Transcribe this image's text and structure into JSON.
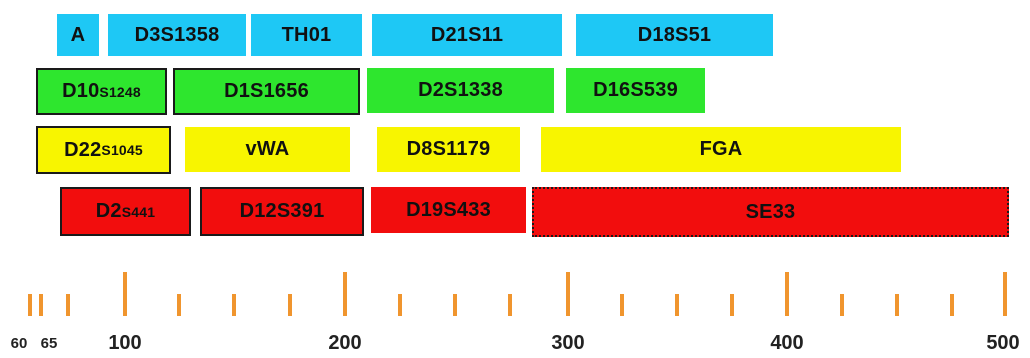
{
  "colors": {
    "row1": "#1ec8f5",
    "row2": "#2ee62e",
    "row3": "#f8f500",
    "row4": "#f20d0d",
    "tick": "#f0952e"
  },
  "markers": {
    "row1": [
      {
        "name": "A",
        "main": "A",
        "sub": ""
      },
      {
        "name": "D3S1358",
        "main": "D3S1358",
        "sub": ""
      },
      {
        "name": "TH01",
        "main": "TH01",
        "sub": ""
      },
      {
        "name": "D21S11",
        "main": "D21S11",
        "sub": ""
      },
      {
        "name": "D18S51",
        "main": "D18S51",
        "sub": ""
      }
    ],
    "row2": [
      {
        "name": "D10S1248",
        "main": "D10",
        "sub": "S1248"
      },
      {
        "name": "D1S1656",
        "main": "D1S1656",
        "sub": ""
      },
      {
        "name": "D2S1338",
        "main": "D2S1338",
        "sub": ""
      },
      {
        "name": "D16S539",
        "main": "D16S539",
        "sub": ""
      }
    ],
    "row3": [
      {
        "name": "D22S1045",
        "main": "D22",
        "sub": "S1045"
      },
      {
        "name": "vWA",
        "main": "vWA",
        "sub": ""
      },
      {
        "name": "D8S1179",
        "main": "D8S1179",
        "sub": ""
      },
      {
        "name": "FGA",
        "main": "FGA",
        "sub": ""
      }
    ],
    "row4": [
      {
        "name": "D2S441",
        "main": "D2",
        "sub": "S441"
      },
      {
        "name": "D12S391",
        "main": "D12S391",
        "sub": ""
      },
      {
        "name": "D19S433",
        "main": "D19S433",
        "sub": ""
      },
      {
        "name": "SE33",
        "main": "SE33",
        "sub": ""
      }
    ]
  },
  "axis": {
    "major_labels": [
      "100",
      "200",
      "300",
      "400",
      "500"
    ],
    "minor_labels": [
      "60",
      "65"
    ]
  }
}
